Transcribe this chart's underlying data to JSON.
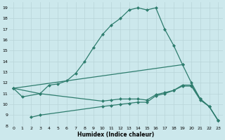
{
  "xlabel": "Humidex (Indice chaleur)",
  "color": "#2e7d6e",
  "bg_color": "#cce8ec",
  "grid_color": "#b8d4d8",
  "ylim": [
    8,
    19.5
  ],
  "xlim": [
    -0.5,
    23.5
  ],
  "line1_x": [
    0,
    1,
    3,
    4,
    5,
    6,
    7,
    8,
    9,
    10,
    11,
    12,
    13,
    14,
    15,
    16,
    17,
    18,
    19
  ],
  "line1_y": [
    11.5,
    10.7,
    11.0,
    11.8,
    11.9,
    12.2,
    12.9,
    14.0,
    15.3,
    16.5,
    17.4,
    18.0,
    18.8,
    19.0,
    18.8,
    19.0,
    17.0,
    15.5,
    13.7
  ],
  "line2_x": [
    2,
    3,
    10,
    11,
    12,
    13,
    14,
    15,
    16,
    17,
    18,
    19,
    20,
    21,
    22,
    23
  ],
  "line2_y": [
    8.8,
    9.0,
    9.8,
    9.9,
    10.0,
    10.1,
    10.2,
    10.2,
    10.8,
    11.0,
    11.3,
    11.8,
    11.8,
    10.5,
    9.8,
    8.5
  ],
  "line3_x": [
    0,
    3,
    10,
    11,
    12,
    13,
    14,
    15,
    16,
    17,
    18,
    19,
    20,
    21,
    22,
    23
  ],
  "line3_y": [
    11.5,
    11.0,
    10.3,
    10.4,
    10.5,
    10.5,
    10.5,
    10.4,
    10.9,
    11.1,
    11.3,
    11.7,
    11.7,
    10.4,
    9.8,
    8.5
  ],
  "line4_x": [
    0,
    19,
    20,
    21,
    22,
    23
  ],
  "line4_y": [
    11.5,
    13.7,
    12.0,
    10.5,
    9.8,
    8.5
  ],
  "yticks": [
    8,
    9,
    10,
    11,
    12,
    13,
    14,
    15,
    16,
    17,
    18,
    19
  ]
}
